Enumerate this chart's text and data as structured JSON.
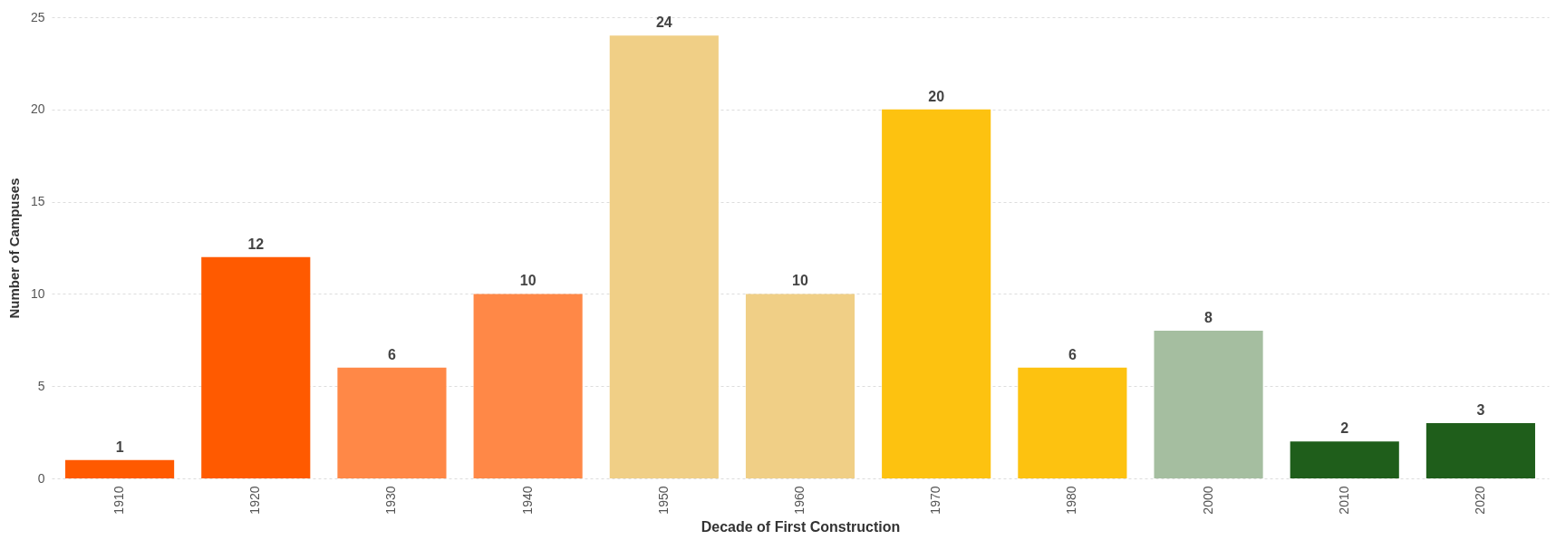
{
  "chart_data": {
    "type": "bar",
    "xlabel": "Decade of First Construction",
    "ylabel": "Number of Campuses",
    "categories": [
      "1910",
      "1920",
      "1930",
      "1940",
      "1950",
      "1960",
      "1970",
      "1980",
      "2000",
      "2010",
      "2020"
    ],
    "values": [
      1,
      12,
      6,
      10,
      24,
      10,
      20,
      6,
      8,
      2,
      3
    ],
    "colors": [
      "#ff5a00",
      "#ff5a00",
      "#ff8847",
      "#ff8847",
      "#f0cf86",
      "#f0cf86",
      "#fdc210",
      "#fdc210",
      "#a5bea0",
      "#1f5e1b",
      "#1f5e1b"
    ],
    "ylim": [
      0,
      25
    ],
    "yticks": [
      0,
      5,
      10,
      15,
      20,
      25
    ],
    "grid": "y",
    "data_labels": true
  }
}
